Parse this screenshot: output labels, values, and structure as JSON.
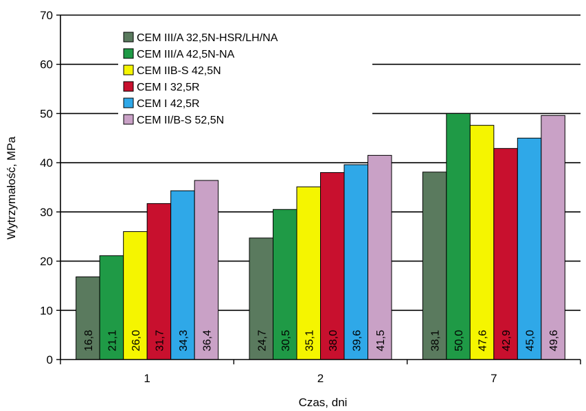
{
  "chart_data": {
    "type": "bar",
    "xlabel": "Czas, dni",
    "ylabel": "Wytrzymałość,  MPa",
    "ylim": [
      0,
      70
    ],
    "yticks": [
      0,
      10,
      20,
      30,
      40,
      50,
      60,
      70
    ],
    "grid": "horizontal",
    "legend_position": "top-left",
    "categories": [
      "1",
      "2",
      "7"
    ],
    "series": [
      {
        "name": "CEM III/A 32,5N-HSR/LH/NA",
        "color": "#5a7a5e",
        "values": [
          16.8,
          24.7,
          38.1
        ],
        "labels": [
          "16,8",
          "24,7",
          "38,1"
        ]
      },
      {
        "name": "CEM III/A 42,5N-NA",
        "color": "#1f9a46",
        "values": [
          21.1,
          30.5,
          50.0
        ],
        "labels": [
          "21,1",
          "30,5",
          "50,0"
        ]
      },
      {
        "name": "CEM IIB-S 42,5N",
        "color": "#f5f500",
        "values": [
          26.0,
          35.1,
          47.6
        ],
        "labels": [
          "26,0",
          "35,1",
          "47,6"
        ]
      },
      {
        "name": "CEM I 32,5R",
        "color": "#c8102e",
        "values": [
          31.7,
          38.0,
          42.9
        ],
        "labels": [
          "31,7",
          "38,0",
          "42,9"
        ]
      },
      {
        "name": "CEM I 42,5R",
        "color": "#2fa8e8",
        "values": [
          34.3,
          39.6,
          45.0
        ],
        "labels": [
          "34,3",
          "39,6",
          "45,0"
        ]
      },
      {
        "name": "CEM II/B-S 52,5N",
        "color": "#c9a1c6",
        "values": [
          36.4,
          41.5,
          49.6
        ],
        "labels": [
          "36,4",
          "41,5",
          "49,6"
        ]
      }
    ]
  }
}
